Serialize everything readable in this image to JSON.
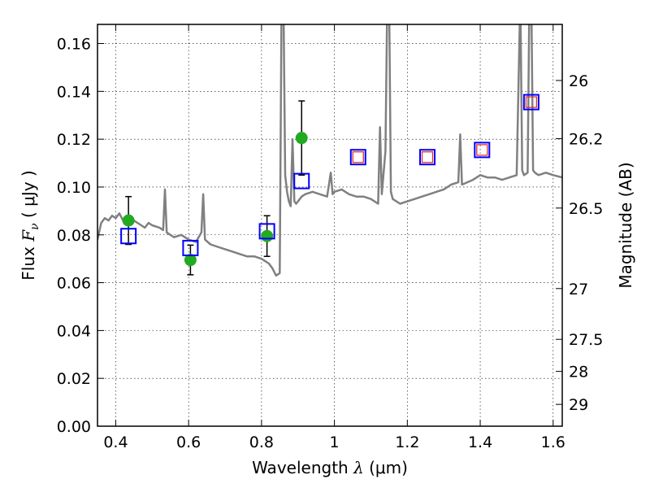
{
  "chart_data": {
    "type": "scatter",
    "xlabel": {
      "prefix": "Wavelength  ",
      "symbol": "λ",
      "suffix": " (μm)"
    },
    "ylabel": {
      "prefix": "Flux  ",
      "symbol": "F",
      "sub": "ν",
      "suffix": "  ( μJy )"
    },
    "y2label": "Magnitude (AB)",
    "xlim": [
      0.35,
      1.625
    ],
    "ylim": [
      0.0,
      0.168
    ],
    "grid": true,
    "x_ticks": [
      {
        "v": 0.4,
        "label": "0.4"
      },
      {
        "v": 0.6,
        "label": "0.6"
      },
      {
        "v": 0.8,
        "label": "0.8"
      },
      {
        "v": 1.0,
        "label": "1"
      },
      {
        "v": 1.2,
        "label": "1.2"
      },
      {
        "v": 1.4,
        "label": "1.4"
      },
      {
        "v": 1.6,
        "label": "1.6"
      }
    ],
    "y_ticks": [
      {
        "v": 0.0,
        "label": "0.00"
      },
      {
        "v": 0.02,
        "label": "0.02"
      },
      {
        "v": 0.04,
        "label": "0.04"
      },
      {
        "v": 0.06,
        "label": "0.06"
      },
      {
        "v": 0.08,
        "label": "0.08"
      },
      {
        "v": 0.1,
        "label": "0.10"
      },
      {
        "v": 0.12,
        "label": "0.12"
      },
      {
        "v": 0.14,
        "label": "0.14"
      },
      {
        "v": 0.16,
        "label": "0.16"
      }
    ],
    "y2_ticks": [
      {
        "v": 26.0,
        "label": "26"
      },
      {
        "v": 26.2,
        "label": "26.2"
      },
      {
        "v": 26.5,
        "label": "26.5"
      },
      {
        "v": 27.0,
        "label": "27"
      },
      {
        "v": 27.5,
        "label": "27.5"
      },
      {
        "v": 28.0,
        "label": "28"
      },
      {
        "v": 29.0,
        "label": "29"
      }
    ],
    "series": [
      {
        "kind": "line",
        "color": "#808080",
        "x": [
          0.35,
          0.36,
          0.37,
          0.38,
          0.39,
          0.4,
          0.41,
          0.42,
          0.43,
          0.44,
          0.45,
          0.46,
          0.47,
          0.48,
          0.49,
          0.5,
          0.52,
          0.53,
          0.535,
          0.54,
          0.56,
          0.58,
          0.6,
          0.62,
          0.635,
          0.64,
          0.645,
          0.66,
          0.68,
          0.7,
          0.72,
          0.74,
          0.76,
          0.78,
          0.8,
          0.82,
          0.83,
          0.84,
          0.85,
          0.855,
          0.86,
          0.865,
          0.87,
          0.875,
          0.88,
          0.885,
          0.89,
          0.895,
          0.9,
          0.905,
          0.91,
          0.92,
          0.94,
          0.96,
          0.98,
          0.99,
          0.995,
          1.0,
          1.02,
          1.04,
          1.06,
          1.08,
          1.1,
          1.12,
          1.125,
          1.13,
          1.14,
          1.145,
          1.15,
          1.155,
          1.16,
          1.18,
          1.2,
          1.22,
          1.24,
          1.26,
          1.28,
          1.3,
          1.32,
          1.34,
          1.345,
          1.35,
          1.38,
          1.4,
          1.42,
          1.44,
          1.46,
          1.48,
          1.5,
          1.51,
          1.515,
          1.52,
          1.53,
          1.535,
          1.54,
          1.545,
          1.55,
          1.56,
          1.58,
          1.6,
          1.625
        ],
        "y": [
          0.078,
          0.085,
          0.087,
          0.086,
          0.088,
          0.087,
          0.089,
          0.086,
          0.088,
          0.087,
          0.086,
          0.085,
          0.084,
          0.083,
          0.085,
          0.084,
          0.083,
          0.082,
          0.099,
          0.081,
          0.079,
          0.08,
          0.078,
          0.077,
          0.081,
          0.097,
          0.078,
          0.076,
          0.075,
          0.074,
          0.073,
          0.072,
          0.071,
          0.071,
          0.07,
          0.068,
          0.066,
          0.063,
          0.064,
          0.18,
          0.18,
          0.105,
          0.098,
          0.094,
          0.092,
          0.12,
          0.094,
          0.093,
          0.094,
          0.095,
          0.096,
          0.097,
          0.098,
          0.097,
          0.096,
          0.106,
          0.097,
          0.098,
          0.099,
          0.097,
          0.096,
          0.096,
          0.095,
          0.093,
          0.125,
          0.097,
          0.115,
          0.18,
          0.18,
          0.098,
          0.095,
          0.093,
          0.094,
          0.095,
          0.096,
          0.097,
          0.098,
          0.099,
          0.101,
          0.102,
          0.122,
          0.101,
          0.103,
          0.105,
          0.104,
          0.104,
          0.103,
          0.104,
          0.105,
          0.18,
          0.107,
          0.105,
          0.106,
          0.18,
          0.18,
          0.107,
          0.106,
          0.105,
          0.106,
          0.105,
          0.104
        ]
      },
      {
        "kind": "errorbar",
        "name": "",
        "marker": "circle",
        "color": "#22aa22",
        "x": [
          0.435,
          0.605,
          0.815,
          0.91
        ],
        "y": [
          0.086,
          0.0695,
          0.0795,
          0.1205
        ],
        "err": [
          0.01,
          0.0062,
          0.0085,
          0.0155
        ]
      },
      {
        "kind": "scatter",
        "name": "",
        "marker": "square",
        "color": "#0000ff",
        "x": [
          0.435,
          0.605,
          0.815,
          0.91,
          1.065,
          1.255,
          1.405,
          1.54
        ],
        "y": [
          0.0795,
          0.0745,
          0.0815,
          0.1025,
          0.1125,
          0.1125,
          0.1155,
          0.1355
        ]
      },
      {
        "kind": "scatter",
        "name": "",
        "marker": "square",
        "color": "#dd3333",
        "x": [
          1.065,
          1.255,
          1.405,
          1.54
        ],
        "y": [
          0.1125,
          0.1125,
          0.1155,
          0.1355
        ]
      }
    ]
  }
}
